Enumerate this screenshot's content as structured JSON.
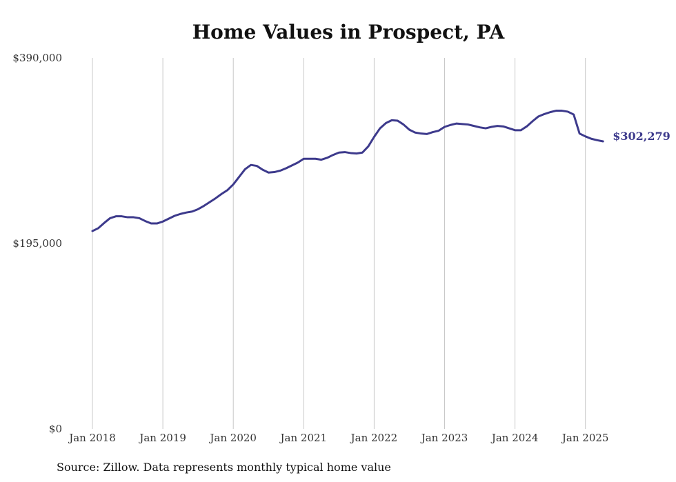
{
  "chart_data": {
    "type": "line",
    "title": "Home Values in Prospect, PA",
    "source": "Source: Zillow. Data represents monthly typical home value",
    "ylim": [
      0,
      390000
    ],
    "ytick_labels": [
      "$0",
      "$195,000",
      "$390,000"
    ],
    "ytick_values": [
      0,
      195000,
      390000
    ],
    "x_range": [
      "2018-01",
      "2025-04"
    ],
    "xtick_labels": [
      "Jan 2018",
      "Jan 2019",
      "Jan 2020",
      "Jan 2021",
      "Jan 2022",
      "Jan 2023",
      "Jan 2024",
      "Jan 2025"
    ],
    "xtick_values": [
      "2018-01",
      "2019-01",
      "2020-01",
      "2021-01",
      "2022-01",
      "2023-01",
      "2024-01",
      "2025-01"
    ],
    "grid": "vertical",
    "line_color": "#3d3a8c",
    "end_label": "$302,279",
    "series": [
      {
        "x": [
          "2018-01",
          "2018-02",
          "2018-03",
          "2018-04",
          "2018-05",
          "2018-06",
          "2018-07",
          "2018-08",
          "2018-09",
          "2018-10",
          "2018-11",
          "2018-12",
          "2019-01",
          "2019-02",
          "2019-03",
          "2019-04",
          "2019-05",
          "2019-06",
          "2019-07",
          "2019-08",
          "2019-09",
          "2019-10",
          "2019-11",
          "2019-12",
          "2020-01",
          "2020-02",
          "2020-03",
          "2020-04",
          "2020-05",
          "2020-06",
          "2020-07",
          "2020-08",
          "2020-09",
          "2020-10",
          "2020-11",
          "2020-12",
          "2021-01",
          "2021-02",
          "2021-03",
          "2021-04",
          "2021-05",
          "2021-06",
          "2021-07",
          "2021-08",
          "2021-09",
          "2021-10",
          "2021-11",
          "2021-12",
          "2022-01",
          "2022-02",
          "2022-03",
          "2022-04",
          "2022-05",
          "2022-06",
          "2022-07",
          "2022-08",
          "2022-09",
          "2022-10",
          "2022-11",
          "2022-12",
          "2023-01",
          "2023-02",
          "2023-03",
          "2023-04",
          "2023-05",
          "2023-06",
          "2023-07",
          "2023-08",
          "2023-09",
          "2023-10",
          "2023-11",
          "2023-12",
          "2024-01",
          "2024-02",
          "2024-03",
          "2024-04",
          "2024-05",
          "2024-06",
          "2024-07",
          "2024-08",
          "2024-09",
          "2024-10",
          "2024-11",
          "2024-12",
          "2025-01",
          "2025-02",
          "2025-03",
          "2025-04"
        ],
        "values": [
          208000,
          211000,
          216500,
          221500,
          223500,
          223500,
          222500,
          222500,
          221500,
          218500,
          216000,
          216000,
          218000,
          221000,
          224000,
          226000,
          227500,
          228500,
          231000,
          234500,
          238500,
          242500,
          247000,
          251000,
          257000,
          265000,
          273000,
          277500,
          276500,
          272500,
          269500,
          270000,
          271500,
          274000,
          277000,
          280000,
          284000,
          284000,
          284000,
          283000,
          285000,
          288000,
          290500,
          291000,
          290000,
          289500,
          290500,
          297000,
          307000,
          316000,
          321500,
          324500,
          324000,
          320000,
          314500,
          311500,
          310500,
          310000,
          312000,
          313500,
          317500,
          319500,
          321000,
          320500,
          320000,
          318500,
          317000,
          316000,
          317500,
          318500,
          318000,
          316000,
          314000,
          314000,
          318000,
          323500,
          328500,
          331000,
          333000,
          334500,
          334500,
          333500,
          330500,
          307000,
          305500,
          304000,
          303000,
          302279
        ]
      }
    ]
  }
}
